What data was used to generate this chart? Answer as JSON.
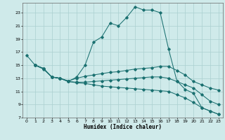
{
  "xlabel": "Humidex (Indice chaleur)",
  "bg_color": "#cfeaea",
  "grid_color": "#aad0d0",
  "line_color": "#1a7070",
  "xlim": [
    -0.5,
    23.5
  ],
  "ylim": [
    7,
    24.5
  ],
  "xticks": [
    0,
    1,
    2,
    3,
    4,
    5,
    6,
    7,
    8,
    9,
    10,
    11,
    12,
    13,
    14,
    15,
    16,
    17,
    18,
    19,
    20,
    21,
    22,
    23
  ],
  "yticks": [
    7,
    9,
    11,
    13,
    15,
    17,
    19,
    21,
    23
  ],
  "line1_x": [
    0,
    1,
    2,
    3,
    4,
    5,
    6,
    7,
    8,
    9,
    10,
    11,
    12,
    13,
    14,
    15,
    16,
    17,
    18,
    19,
    20,
    21,
    22,
    23
  ],
  "line1_y": [
    16.5,
    15.0,
    14.4,
    13.2,
    13.0,
    12.5,
    13.2,
    15.0,
    18.5,
    19.3,
    21.4,
    21.0,
    22.3,
    23.9,
    23.4,
    23.4,
    23.0,
    17.5,
    12.6,
    11.3,
    10.7,
    8.5,
    8.0,
    7.5
  ],
  "line2_x": [
    1,
    2,
    3,
    4,
    5,
    6,
    7,
    8,
    9,
    10,
    11,
    12,
    13,
    14,
    15,
    16,
    17,
    18,
    19,
    20,
    21,
    22,
    23
  ],
  "line2_y": [
    15.0,
    14.5,
    13.2,
    13.0,
    12.6,
    13.0,
    13.3,
    13.5,
    13.7,
    13.9,
    14.0,
    14.2,
    14.4,
    14.5,
    14.6,
    14.8,
    14.8,
    14.2,
    13.5,
    12.5,
    12.0,
    11.5,
    11.2
  ],
  "line3_x": [
    1,
    2,
    3,
    4,
    5,
    6,
    7,
    8,
    9,
    10,
    11,
    12,
    13,
    14,
    15,
    16,
    17,
    18,
    19,
    20,
    21,
    22,
    23
  ],
  "line3_y": [
    15.0,
    14.5,
    13.2,
    13.0,
    12.5,
    12.4,
    12.4,
    12.5,
    12.6,
    12.7,
    12.8,
    12.9,
    13.0,
    13.1,
    13.2,
    13.2,
    13.0,
    12.5,
    12.0,
    11.5,
    10.5,
    9.5,
    9.0
  ],
  "line4_x": [
    1,
    2,
    3,
    4,
    5,
    6,
    7,
    8,
    9,
    10,
    11,
    12,
    13,
    14,
    15,
    16,
    17,
    18,
    19,
    20,
    21,
    22,
    23
  ],
  "line4_y": [
    15.0,
    14.5,
    13.2,
    13.0,
    12.5,
    12.3,
    12.2,
    12.0,
    11.8,
    11.7,
    11.6,
    11.5,
    11.4,
    11.3,
    11.2,
    11.1,
    11.0,
    10.5,
    10.0,
    9.3,
    8.5,
    8.0,
    7.5
  ]
}
